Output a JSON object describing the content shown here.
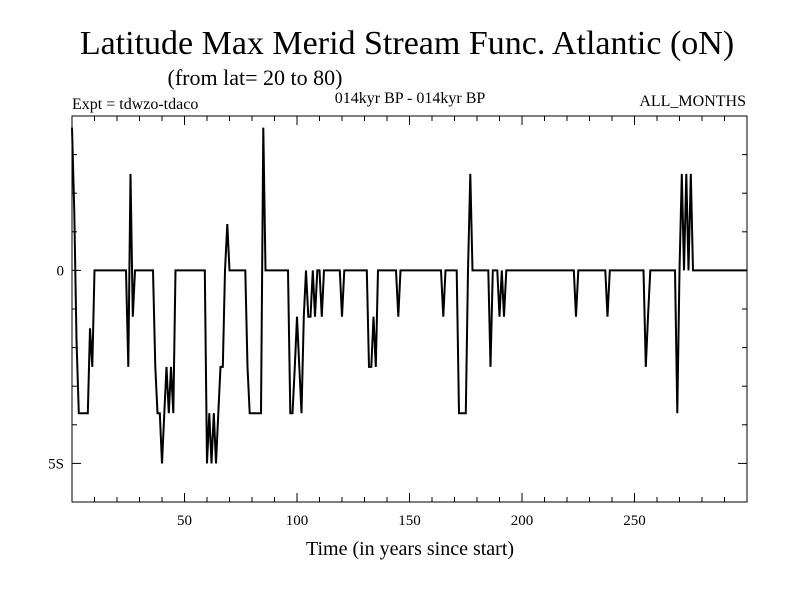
{
  "chart_data": {
    "type": "line",
    "title": "Latitude Max Merid Stream Func. Atlantic (oN)",
    "subtitle": "(from lat= 20 to 80)",
    "header_left": "Expt = tdwzo-tdaco",
    "header_center": "014kyr BP - 014kyr BP",
    "header_right": "ALL_MONTHS",
    "xlabel": "Time (in years since start)",
    "ylabel": "",
    "xlim": [
      0,
      300
    ],
    "ylim": [
      -6,
      4
    ],
    "x_ticks": [
      50,
      100,
      150,
      200,
      250
    ],
    "x_tick_labels": [
      "50",
      "100",
      "150",
      "200",
      "250"
    ],
    "y_ticks": [
      0,
      -5
    ],
    "y_tick_labels": [
      "0",
      "5S"
    ],
    "grid": false,
    "series": [
      {
        "x": [
          0,
          1,
          2,
          3,
          4,
          5,
          6,
          7,
          8,
          9,
          10,
          11,
          12,
          24,
          25,
          26,
          27,
          28,
          36,
          37,
          38,
          39,
          40,
          41,
          42,
          43,
          44,
          45,
          46,
          59,
          60,
          61,
          62,
          63,
          64,
          65,
          66,
          67,
          68,
          69,
          70,
          71,
          72,
          77,
          78,
          79,
          80,
          81,
          82,
          83,
          84,
          85,
          86,
          87,
          96,
          97,
          98,
          99,
          100,
          101,
          102,
          103,
          104,
          105,
          106,
          107,
          108,
          109,
          110,
          111,
          112,
          113,
          119,
          120,
          121,
          131,
          132,
          133,
          134,
          135,
          136,
          144,
          145,
          146,
          164,
          165,
          166,
          171,
          172,
          173,
          174,
          175,
          176,
          177,
          178,
          179,
          185,
          186,
          187,
          189,
          190,
          191,
          192,
          193,
          223,
          224,
          225,
          237,
          238,
          239,
          254,
          255,
          256,
          257,
          268,
          269,
          270,
          271,
          272,
          273,
          274,
          275,
          276,
          277,
          300
        ],
        "y": [
          3.7,
          1.5,
          -1.8,
          -3.7,
          -3.7,
          -3.7,
          -3.7,
          -3.7,
          -1.5,
          -2.5,
          0,
          0,
          0,
          0,
          -2.5,
          2.5,
          -1.2,
          0,
          0,
          -2.5,
          -3.7,
          -3.7,
          -5,
          -3.7,
          -2.5,
          -3.7,
          -2.5,
          -3.7,
          0,
          0,
          -5,
          -3.7,
          -5,
          -3.7,
          -5,
          -3.7,
          -2.5,
          -2.5,
          0,
          1.2,
          0,
          0,
          0,
          0,
          -2.5,
          -3.7,
          -3.7,
          -3.7,
          -3.7,
          -3.7,
          -3.7,
          3.7,
          0,
          0,
          0,
          -3.7,
          -3.7,
          -2.5,
          -1.2,
          -2.5,
          -3.7,
          -1.2,
          0,
          -1.2,
          -1.2,
          0,
          -1.2,
          0,
          0,
          -1.2,
          0,
          0,
          0,
          -1.2,
          0,
          0,
          -2.5,
          -2.5,
          -1.2,
          -2.5,
          0,
          0,
          -1.2,
          0,
          0,
          -1.2,
          0,
          0,
          -3.7,
          -3.7,
          -3.7,
          -3.7,
          0,
          2.5,
          0,
          0,
          0,
          -2.5,
          0,
          0,
          -1.2,
          0,
          -1.2,
          0,
          0,
          -1.2,
          0,
          0,
          -1.2,
          0,
          0,
          -2.5,
          -1.2,
          0,
          0,
          -3.7,
          0,
          2.5,
          0,
          2.5,
          0,
          2.5,
          0,
          0,
          0
        ]
      }
    ]
  }
}
